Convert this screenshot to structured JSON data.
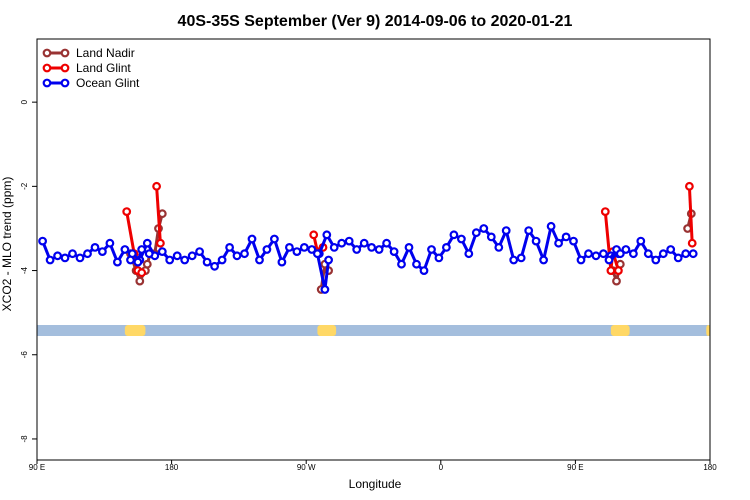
{
  "chart_data": {
    "type": "line",
    "title": "40S-35S September (Ver 9)   2014-09-06 to 2020-01-21",
    "xlabel": "Longitude",
    "ylabel": "XCO2 - MLO trend (ppm)",
    "xlim": [
      90,
      450
    ],
    "ylim": [
      -8.5,
      1.5
    ],
    "x_ticks": [
      {
        "value": 90,
        "label": "90 E"
      },
      {
        "value": 180,
        "label": "180"
      },
      {
        "value": 270,
        "label": "90 W"
      },
      {
        "value": 360,
        "label": "0"
      },
      {
        "value": 450,
        "label": "90 E"
      },
      {
        "value": 540,
        "label": "180"
      }
    ],
    "y_ticks": [
      {
        "value": 0,
        "label": "0"
      },
      {
        "value": -2,
        "label": "-2"
      },
      {
        "value": -4,
        "label": "-4"
      },
      {
        "value": -6,
        "label": "-6"
      },
      {
        "value": -8,
        "label": "-8"
      }
    ],
    "legend_position": "top-left",
    "series": [
      {
        "name": "Land Nadir",
        "color": "#993333",
        "segments": [
          {
            "x": [
              140,
              143,
              145,
              148,
              149,
              150.5,
              153,
              155,
              157
            ],
            "y": [
              -3.6,
              -4.0,
              -4.25,
              -4.0,
              -3.85,
              -3.6,
              -3.6,
              -3.0,
              -2.65
            ]
          },
          {
            "x": [
              242,
              244,
              246
            ],
            "y": [
              -4.45,
              -3.85,
              -4.0
            ]
          },
          {
            "x": [
              398,
              400,
              402
            ],
            "y": [
              -4.0,
              -4.25,
              -3.85
            ]
          },
          {
            "x": [
              438,
              440
            ],
            "y": [
              -3.0,
              -2.65
            ]
          }
        ]
      },
      {
        "name": "Land Glint",
        "color": "#ee0000",
        "segments": [
          {
            "x": [
              138,
              142,
              144,
              146
            ],
            "y": [
              -2.6,
              -3.6,
              -4.0,
              -4.05
            ]
          },
          {
            "x": [
              154,
              156
            ],
            "y": [
              -2.0,
              -3.35
            ]
          },
          {
            "x": [
              238,
              240,
              243
            ],
            "y": [
              -3.15,
              -3.55,
              -3.45
            ]
          },
          {
            "x": [
              394,
              397,
              398,
              401
            ],
            "y": [
              -2.6,
              -4.0,
              -3.55,
              -4.0
            ]
          },
          {
            "x": [
              439,
              440.5
            ],
            "y": [
              -2.0,
              -3.35
            ]
          }
        ]
      },
      {
        "name": "Ocean Glint",
        "color": "#0000ee",
        "segments": [
          {
            "x": [
              93,
              97,
              101,
              105,
              109,
              113,
              117,
              121,
              125,
              129,
              133,
              137,
              141,
              145,
              149,
              153,
              157,
              161,
              165,
              169,
              173,
              177,
              181,
              185,
              189,
              193,
              197,
              201,
              205,
              209,
              213,
              217,
              221,
              225,
              229,
              233,
              237,
              241,
              245,
              249,
              253,
              257,
              261,
              265,
              269,
              273,
              277,
              281,
              285,
              289,
              293,
              297,
              301,
              305,
              309,
              313,
              317,
              321,
              325,
              329,
              333,
              337,
              341,
              345,
              349,
              353,
              357,
              361,
              365,
              369,
              373,
              377,
              381,
              385,
              389,
              393,
              397,
              401,
              405,
              409,
              413,
              417,
              421,
              425,
              429,
              433,
              437,
              441
            ],
            "y": [
              -3.3,
              -3.75,
              -3.65,
              -3.7,
              -3.6,
              -3.7,
              -3.6,
              -3.45,
              -3.55,
              -3.35,
              -3.8,
              -3.5,
              -3.6,
              -3.75,
              -3.35,
              -3.65,
              -3.55,
              -3.75,
              -3.65,
              -3.75,
              -3.65,
              -3.55,
              -3.8,
              -3.9,
              -3.75,
              -3.45,
              -3.65,
              -3.6,
              -3.25,
              -3.75,
              -3.5,
              -3.25,
              -3.8,
              -3.45,
              -3.55,
              -3.45,
              -3.5,
              -3.6,
              -3.15,
              -3.45,
              -3.35,
              -3.3,
              -3.5,
              -3.35,
              -3.45,
              -3.5,
              -3.35,
              -3.55,
              -3.85,
              -3.45,
              -3.85,
              -4.0,
              -3.5,
              -3.7,
              -3.45,
              -3.15,
              -3.25,
              -3.6,
              -3.1,
              -3.0,
              -3.2,
              -3.45,
              -3.05,
              -3.75,
              -3.7,
              -3.05,
              -3.3,
              -3.75,
              -2.95,
              -3.35,
              -3.2,
              -3.3,
              -3.75,
              -3.6,
              -3.65,
              -3.6,
              -3.65,
              -3.6,
              -3.5,
              -3.6,
              -3.3,
              -3.6,
              -3.75,
              -3.6,
              -3.5,
              -3.7,
              -3.6,
              -3.6
            ]
          },
          {
            "x": [
              140,
              144,
              146,
              150
            ],
            "y": [
              -3.75,
              -3.8,
              -3.5,
              -3.6
            ]
          },
          {
            "x": [
              240,
              244,
              246
            ],
            "y": [
              -3.6,
              -4.45,
              -3.75
            ]
          },
          {
            "x": [
              396,
              400,
              402
            ],
            "y": [
              -3.75,
              -3.5,
              -3.6
            ]
          }
        ]
      }
    ],
    "map_strip": {
      "ocean_color": "#a4bedd",
      "land_color": "#ffd866",
      "land_spans": [
        [
          137,
          148
        ],
        [
          240,
          250
        ],
        [
          397,
          407
        ],
        [
          448,
          450
        ]
      ]
    }
  }
}
